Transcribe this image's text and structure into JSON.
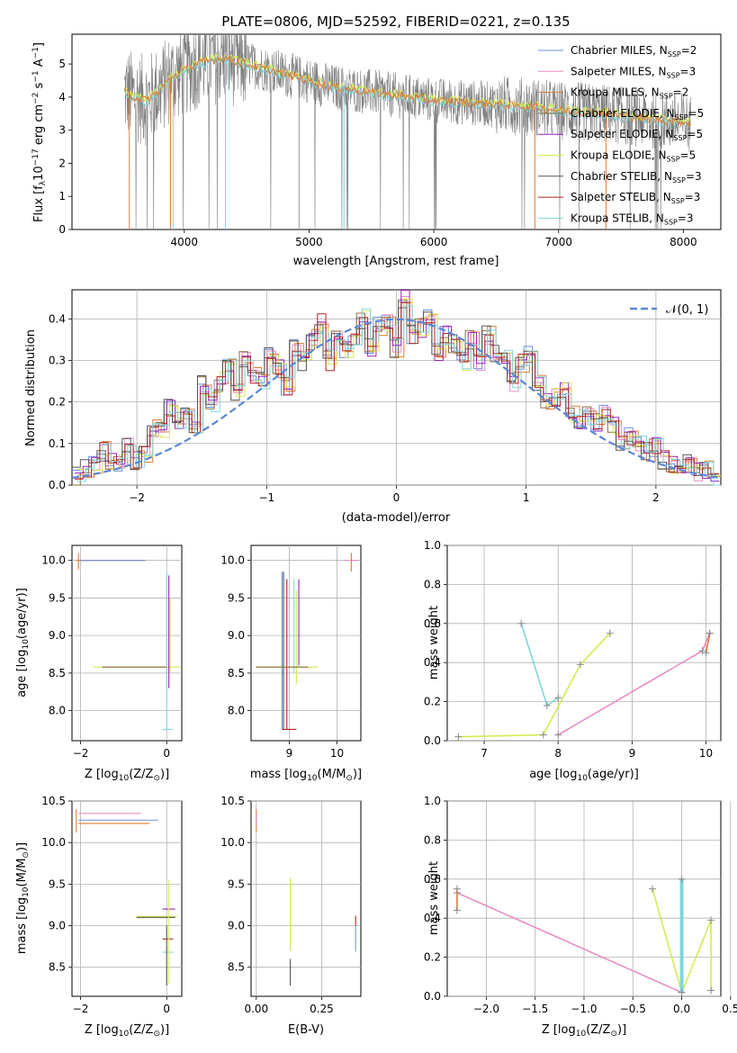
{
  "figure_title": "PLATE=0806, MJD=52592, FIBERID=0221, z=0.135",
  "colors": {
    "chabrier_miles": "#6a8fdc",
    "salpeter_miles": "#e88cc3",
    "kroupa_miles": "#e07b39",
    "chabrier_elodie": "#8b6d3e",
    "salpeter_elodie": "#9a1fbf",
    "kroupa_elodie": "#d4ea52",
    "chabrier_stelib": "#555555",
    "salpeter_stelib": "#b22222",
    "kroupa_stelib": "#7fd6dc"
  },
  "chart_data": [
    {
      "id": "spectrum",
      "type": "line",
      "title": "PLATE=0806, MJD=52592, FIBERID=0221, z=0.135",
      "xlabel": "wavelength [Angstrom, rest frame]",
      "ylabel": "Flux [f_λ 10^-17 erg cm^-2 s^-1 A^-1]",
      "xlim": [
        3100,
        8300
      ],
      "ylim": [
        0,
        5.9
      ],
      "xticks": [
        4000,
        5000,
        6000,
        7000,
        8000
      ],
      "yticks": [
        0,
        1,
        2,
        3,
        4,
        5
      ],
      "legend_position": "right",
      "legend": [
        {
          "name": "Chabrier MILES, N_SSP=2",
          "color": "#6a8fdc"
        },
        {
          "name": "Salpeter MILES, N_SSP=3",
          "color": "#e88cc3"
        },
        {
          "name": "Kroupa MILES, N_SSP=2",
          "color": "#e07b39"
        },
        {
          "name": "Chabrier ELODIE, N_SSP=5",
          "color": "#8b6d3e"
        },
        {
          "name": "Salpeter ELODIE, N_SSP=5",
          "color": "#9a1fbf"
        },
        {
          "name": "Kroupa ELODIE, N_SSP=5",
          "color": "#d4ea52"
        },
        {
          "name": "Chabrier STELIB, N_SSP=3",
          "color": "#555555"
        },
        {
          "name": "Salpeter STELIB, N_SSP=3",
          "color": "#b22222"
        },
        {
          "name": "Kroupa STELIB, N_SSP=3",
          "color": "#7fd6dc"
        }
      ],
      "model_curve": {
        "x": [
          3500,
          3600,
          3700,
          3800,
          3900,
          4000,
          4100,
          4200,
          4300,
          4400,
          4500,
          4600,
          4800,
          5000,
          5200,
          5400,
          5600,
          5800,
          6000,
          6200,
          6400,
          6600,
          6800,
          7000,
          7200,
          7400,
          7600,
          7800,
          8000,
          8050
        ],
        "y": [
          4.2,
          4.0,
          3.9,
          4.2,
          4.6,
          4.8,
          5.0,
          5.1,
          5.2,
          5.1,
          5.0,
          4.9,
          4.7,
          4.5,
          4.3,
          4.2,
          4.1,
          4.0,
          3.9,
          3.85,
          3.8,
          3.75,
          3.7,
          3.6,
          3.55,
          3.5,
          3.4,
          3.3,
          3.25,
          3.2
        ]
      }
    },
    {
      "id": "residuals",
      "type": "line",
      "xlabel": "(data-model)/error",
      "ylabel": "Normed distribution",
      "xlim": [
        -2.5,
        2.5
      ],
      "ylim": [
        0,
        0.47
      ],
      "xticks": [
        -2,
        -1,
        0,
        1,
        2
      ],
      "yticks": [
        0.0,
        0.1,
        0.2,
        0.3,
        0.4
      ],
      "grid": true,
      "legend_position": "top-right",
      "legend": [
        {
          "name": "𝒩(0, 1)",
          "color": "#5b86d6"
        }
      ],
      "bin_width": 0.1,
      "hist_values": [
        0.02,
        0.04,
        0.05,
        0.08,
        0.06,
        0.05,
        0.09,
        0.06,
        0.08,
        0.14,
        0.13,
        0.19,
        0.16,
        0.18,
        0.13,
        0.24,
        0.2,
        0.25,
        0.28,
        0.22,
        0.3,
        0.27,
        0.25,
        0.31,
        0.28,
        0.24,
        0.33,
        0.3,
        0.35,
        0.39,
        0.3,
        0.37,
        0.32,
        0.36,
        0.4,
        0.33,
        0.38,
        0.39,
        0.33,
        0.45,
        0.36,
        0.38,
        0.41,
        0.32,
        0.36,
        0.34,
        0.3,
        0.35,
        0.3,
        0.36,
        0.32,
        0.31,
        0.25,
        0.29,
        0.31,
        0.25,
        0.2,
        0.21,
        0.23,
        0.17,
        0.16,
        0.17,
        0.15,
        0.17,
        0.14,
        0.1,
        0.12,
        0.1,
        0.08,
        0.09,
        0.06,
        0.05,
        0.04,
        0.05,
        0.03,
        0.04,
        0.02
      ]
    },
    {
      "id": "age-vs-Z",
      "type": "scatter",
      "xlabel": "Z [log10(Z/Z⊙)]",
      "ylabel": "age [log10(age/yr)]",
      "xlim": [
        -2.2,
        0.35
      ],
      "ylim": [
        7.6,
        10.2
      ],
      "xticks": [
        -2,
        0
      ],
      "yticks": [
        8.0,
        8.5,
        9.0,
        9.5,
        10.0
      ],
      "grid": true
    },
    {
      "id": "age-vs-mass",
      "type": "scatter",
      "xlabel": "mass [log10(M/M⊙)]",
      "xlim": [
        8.2,
        10.5
      ],
      "ylim": [
        7.6,
        10.2
      ],
      "xticks": [
        9,
        10
      ],
      "yticks": [
        8.0,
        8.5,
        9.0,
        9.5,
        10.0
      ],
      "grid": true
    },
    {
      "id": "mass-weight-vs-age",
      "type": "line",
      "xlabel": "age [log10(age/yr)]",
      "ylabel": "mass weight",
      "xlim": [
        6.5,
        10.2
      ],
      "ylim": [
        0,
        1.0
      ],
      "xticks": [
        7,
        8,
        9,
        10
      ],
      "yticks": [
        0.0,
        0.2,
        0.4,
        0.6,
        0.8,
        1.0
      ],
      "grid": true,
      "series": [
        {
          "color": "#e88cc3",
          "x": [
            8.0,
            9.95,
            10.05
          ],
          "y": [
            0.03,
            0.46,
            0.55
          ]
        },
        {
          "color": "#d4ea52",
          "x": [
            6.65,
            7.8,
            8.3,
            8.7
          ],
          "y": [
            0.02,
            0.03,
            0.39,
            0.55
          ]
        },
        {
          "color": "#7fd6dc",
          "x": [
            7.5,
            7.85,
            8.0
          ],
          "y": [
            0.6,
            0.18,
            0.22
          ]
        },
        {
          "color": "#e07b39",
          "x": [
            10.0,
            10.05
          ],
          "y": [
            0.45,
            0.55
          ]
        }
      ]
    },
    {
      "id": "mass-vs-Z",
      "type": "scatter",
      "xlabel": "Z [log10(Z/Z⊙)]",
      "ylabel": "mass [log10(M/M⊙)]",
      "xlim": [
        -2.2,
        0.35
      ],
      "ylim": [
        8.15,
        10.5
      ],
      "xticks": [
        -2,
        0
      ],
      "yticks": [
        8.5,
        9.0,
        9.5,
        10.0,
        10.5
      ],
      "grid": true
    },
    {
      "id": "mass-vs-ebv",
      "type": "scatter",
      "xlabel": "E(B-V)",
      "xlim": [
        -0.02,
        0.4
      ],
      "ylim": [
        8.15,
        10.5
      ],
      "xticks": [
        0.0,
        0.25
      ],
      "xticklabels": [
        "0.00",
        "0.25"
      ],
      "yticks": [
        8.5,
        9.0,
        9.5,
        10.0,
        10.5
      ],
      "grid": true
    },
    {
      "id": "mass-weight-vs-Z",
      "type": "line",
      "xlabel": "Z [log10(Z/Z⊙)]",
      "ylabel": "mass weight",
      "xlim": [
        -2.4,
        0.4
      ],
      "ylim": [
        0,
        1.0
      ],
      "xticks": [
        -2.0,
        -1.5,
        -1.0,
        -0.5,
        0.0,
        0.5
      ],
      "yticks": [
        0.0,
        0.2,
        0.4,
        0.6,
        0.8,
        1.0
      ],
      "grid": true,
      "series": [
        {
          "color": "#e88cc3",
          "x": [
            -2.3,
            0.0
          ],
          "y": [
            0.53,
            0.02
          ]
        },
        {
          "color": "#d4ea52",
          "x": [
            -0.3,
            0.0,
            0.3,
            0.3
          ],
          "y": [
            0.55,
            0.02,
            0.39,
            0.03
          ]
        },
        {
          "color": "#7fd6dc",
          "x": [
            0.0,
            0.0
          ],
          "y": [
            0.6,
            0.02
          ]
        },
        {
          "color": "#e07b39",
          "x": [
            -2.3,
            -2.3
          ],
          "y": [
            0.44,
            0.55
          ]
        }
      ]
    }
  ],
  "tick_text": {
    "spectrum_x": [
      "4000",
      "5000",
      "6000",
      "7000",
      "8000"
    ],
    "spectrum_y": [
      "0",
      "1",
      "2",
      "3",
      "4",
      "5"
    ],
    "resid_x": [
      "−2",
      "−1",
      "0",
      "1",
      "2"
    ],
    "resid_y": [
      "0.0",
      "0.1",
      "0.2",
      "0.3",
      "0.4"
    ],
    "age_y": [
      "8.0",
      "8.5",
      "9.0",
      "9.5",
      "10.0"
    ],
    "zsmall_x": [
      "−2",
      "0"
    ],
    "mass_x": [
      "9",
      "10"
    ],
    "mw_y": [
      "0.0",
      "0.2",
      "0.4",
      "0.6",
      "0.8",
      "1.0"
    ],
    "age_x": [
      "7",
      "8",
      "9",
      "10"
    ],
    "mass_y": [
      "8.5",
      "9.0",
      "9.5",
      "10.0",
      "10.5"
    ],
    "ebv_x": [
      "0.00",
      "0.25"
    ],
    "z_x": [
      "−2.0",
      "−1.5",
      "−1.0",
      "−0.5",
      "0.0",
      "0.5"
    ]
  }
}
